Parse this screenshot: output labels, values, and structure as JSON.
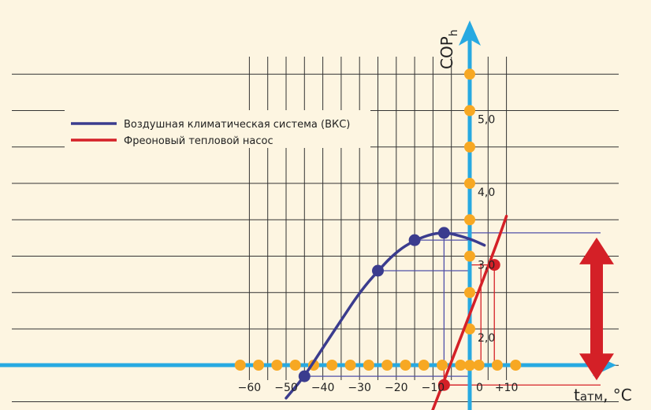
{
  "chart_data": {
    "type": "line",
    "title": "",
    "xlabel": "t",
    "xlabel_sub": "атм",
    "xlabel_unit": ", °C",
    "ylabel": "COP",
    "ylabel_sub": "h",
    "xlim": [
      -60,
      10
    ],
    "ylim": [
      1.0,
      5.5
    ],
    "x_tick_labels": [
      {
        "x": -60,
        "label": "−60"
      },
      {
        "x": -50,
        "label": "−50"
      },
      {
        "x": -40,
        "label": "−40"
      },
      {
        "x": -30,
        "label": "−30"
      },
      {
        "x": -20,
        "label": "−20"
      },
      {
        "x": -10,
        "label": "−10"
      },
      {
        "x": 0,
        "label": "0"
      },
      {
        "x": 10,
        "label": "+10"
      }
    ],
    "y_tick_labels": [
      {
        "y": 2.0,
        "label": "2,0"
      },
      {
        "y": 3.0,
        "label": "3,0"
      },
      {
        "y": 4.0,
        "label": "4,0"
      },
      {
        "y": 5.0,
        "label": "5,0"
      }
    ],
    "grid": true,
    "legend_position": "top-left",
    "series": [
      {
        "name": "Воздушная климатическая система (ВКС)",
        "color": "#3b3c8e",
        "curve": [
          [
            -50,
            1.05
          ],
          [
            -45,
            1.35
          ],
          [
            -40,
            1.74
          ],
          [
            -35,
            2.12
          ],
          [
            -30,
            2.5
          ],
          [
            -25,
            2.8
          ],
          [
            -20,
            3.06
          ],
          [
            -15,
            3.22
          ],
          [
            -10,
            3.31
          ],
          [
            -7,
            3.32
          ],
          [
            -5,
            3.31
          ],
          [
            0,
            3.24
          ],
          [
            4,
            3.15
          ]
        ],
        "markers": [
          [
            -45,
            1.35
          ],
          [
            -25,
            2.8
          ],
          [
            -15,
            3.22
          ],
          [
            -7,
            3.32
          ]
        ]
      },
      {
        "name": "Фреоновый тепловой насос",
        "color": "#d42027",
        "curve": [
          [
            -11.5,
            0.7
          ],
          [
            -5,
            1.55
          ],
          [
            0,
            2.2
          ],
          [
            7,
            3.12
          ],
          [
            10,
            3.55
          ]
        ],
        "markers": [
          [
            -7,
            1.23
          ],
          [
            6.7,
            2.88
          ]
        ]
      }
    ],
    "gain_arrow": {
      "from": 1.23,
      "to": 3.32,
      "color": "#d42027"
    }
  }
}
